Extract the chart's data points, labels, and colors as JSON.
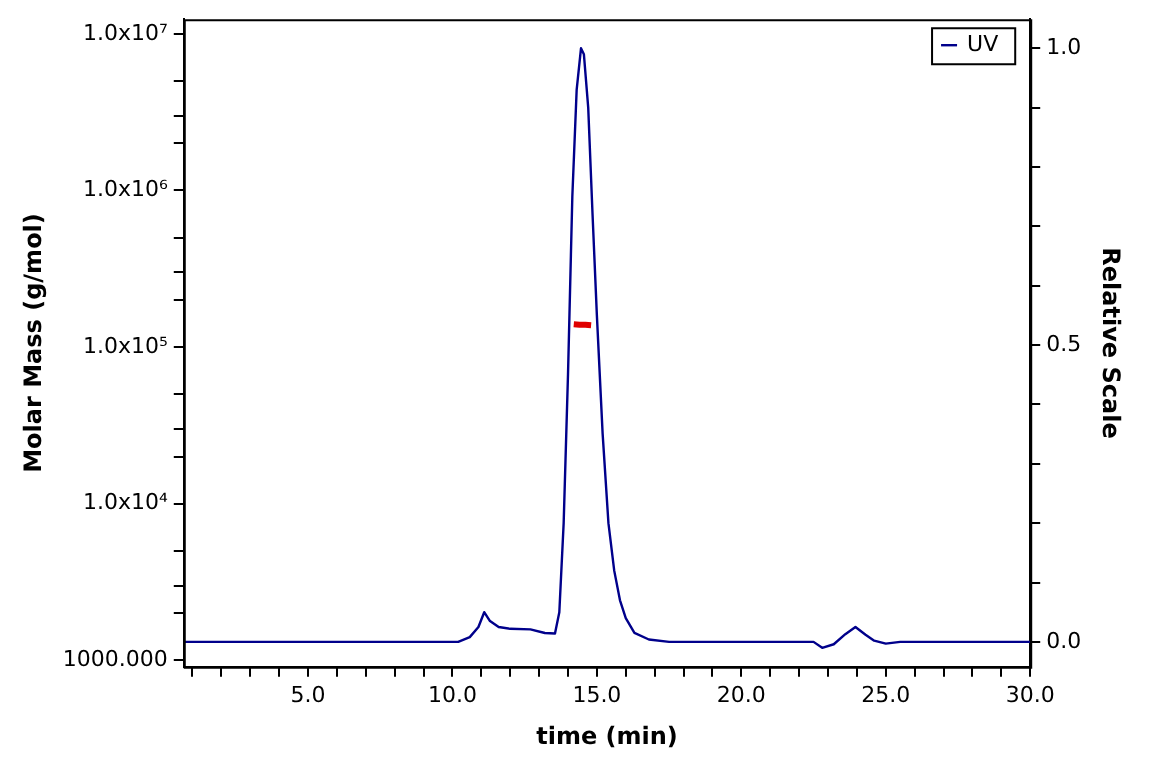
{
  "chart_data": {
    "type": "line",
    "xlabel": "time (min)",
    "ylabel": "Molar Mass (g/mol)",
    "y2label": "Relative Scale",
    "log": "y",
    "grid": false,
    "legend": "top right",
    "marker": "none",
    "line_style": "solid",
    "xlim": [
      0.7,
      30
    ],
    "xticks": [
      {
        "value": 1,
        "label": null
      },
      {
        "value": 2,
        "label": null
      },
      {
        "value": 3,
        "label": null
      },
      {
        "value": 4,
        "label": null
      },
      {
        "value": 5,
        "label": "5.0"
      },
      {
        "value": 6,
        "label": null
      },
      {
        "value": 7,
        "label": null
      },
      {
        "value": 8,
        "label": null
      },
      {
        "value": 9,
        "label": null
      },
      {
        "value": 10,
        "label": "10.0"
      },
      {
        "value": 11,
        "label": null
      },
      {
        "value": 12,
        "label": null
      },
      {
        "value": 13,
        "label": null
      },
      {
        "value": 14,
        "label": null
      },
      {
        "value": 15,
        "label": "15.0"
      },
      {
        "value": 16,
        "label": null
      },
      {
        "value": 17,
        "label": null
      },
      {
        "value": 18,
        "label": null
      },
      {
        "value": 19,
        "label": null
      },
      {
        "value": 20,
        "label": "20.0"
      },
      {
        "value": 21,
        "label": null
      },
      {
        "value": 22,
        "label": null
      },
      {
        "value": 23,
        "label": null
      },
      {
        "value": 24,
        "label": null
      },
      {
        "value": 25,
        "label": "25.0"
      },
      {
        "value": 26,
        "label": null
      },
      {
        "value": 27,
        "label": null
      },
      {
        "value": 28,
        "label": null
      },
      {
        "value": 29,
        "label": null
      },
      {
        "value": 30,
        "label": "30.0"
      }
    ],
    "ylim": [
      910,
      12400000
    ],
    "yticks": [
      {
        "value": 1000,
        "label": "1000.000"
      },
      {
        "value": 2000,
        "label": null
      },
      {
        "value": 3000,
        "label": null
      },
      {
        "value": 5000,
        "label": null
      },
      {
        "value": 10000,
        "label": "1.0x10⁴"
      },
      {
        "value": 20000,
        "label": null
      },
      {
        "value": 30000,
        "label": null
      },
      {
        "value": 50000,
        "label": null
      },
      {
        "value": 100000,
        "label": "1.0x10⁵"
      },
      {
        "value": 200000,
        "label": null
      },
      {
        "value": 300000,
        "label": null
      },
      {
        "value": 500000,
        "label": null
      },
      {
        "value": 1000000,
        "label": "1.0x10⁶"
      },
      {
        "value": 2000000,
        "label": null
      },
      {
        "value": 3000000,
        "label": null
      },
      {
        "value": 5000000,
        "label": null
      },
      {
        "value": 10000000,
        "label": "1.0x10⁷"
      }
    ],
    "y2lim": [
      -0.042,
      1.049
    ],
    "y2ticks": [
      {
        "value": 0,
        "label": "0.0"
      },
      {
        "value": 0.1,
        "label": null
      },
      {
        "value": 0.2,
        "label": null
      },
      {
        "value": 0.3,
        "label": null
      },
      {
        "value": 0.4,
        "label": null
      },
      {
        "value": 0.5,
        "label": "0.5"
      },
      {
        "value": 0.6,
        "label": null
      },
      {
        "value": 0.7,
        "label": null
      },
      {
        "value": 0.8,
        "label": null
      },
      {
        "value": 0.9,
        "label": null
      },
      {
        "value": 1,
        "label": "1.0"
      }
    ],
    "series": [
      {
        "name": "UV",
        "color": "#00008b",
        "axis": "y2",
        "x": [
          0.7,
          10.2,
          10.6,
          10.9,
          11.1,
          11.3,
          11.6,
          12.0,
          12.7,
          13.2,
          13.55,
          13.7,
          13.85,
          14.0,
          14.15,
          14.3,
          14.45,
          14.55,
          14.7,
          14.85,
          15.0,
          15.2,
          15.4,
          15.6,
          15.8,
          16.0,
          16.3,
          16.8,
          17.5,
          22.5,
          22.8,
          23.2,
          23.6,
          23.95,
          24.3,
          24.6,
          25.0,
          25.5,
          30
        ],
        "values": [
          0,
          0,
          0.008,
          0.025,
          0.05,
          0.035,
          0.025,
          0.022,
          0.021,
          0.015,
          0.014,
          0.05,
          0.2,
          0.45,
          0.75,
          0.93,
          1.0,
          0.99,
          0.9,
          0.72,
          0.55,
          0.35,
          0.2,
          0.12,
          0.07,
          0.04,
          0.015,
          0.004,
          0,
          0,
          -0.01,
          -0.004,
          0.013,
          0.025,
          0.012,
          0.002,
          -0.003,
          0,
          0
        ]
      },
      {
        "color": "#e00000",
        "axis": "y",
        "x": [
          14.2,
          14.4,
          14.6,
          14.8
        ],
        "values": [
          140000,
          139000,
          139000,
          138000
        ]
      }
    ]
  }
}
